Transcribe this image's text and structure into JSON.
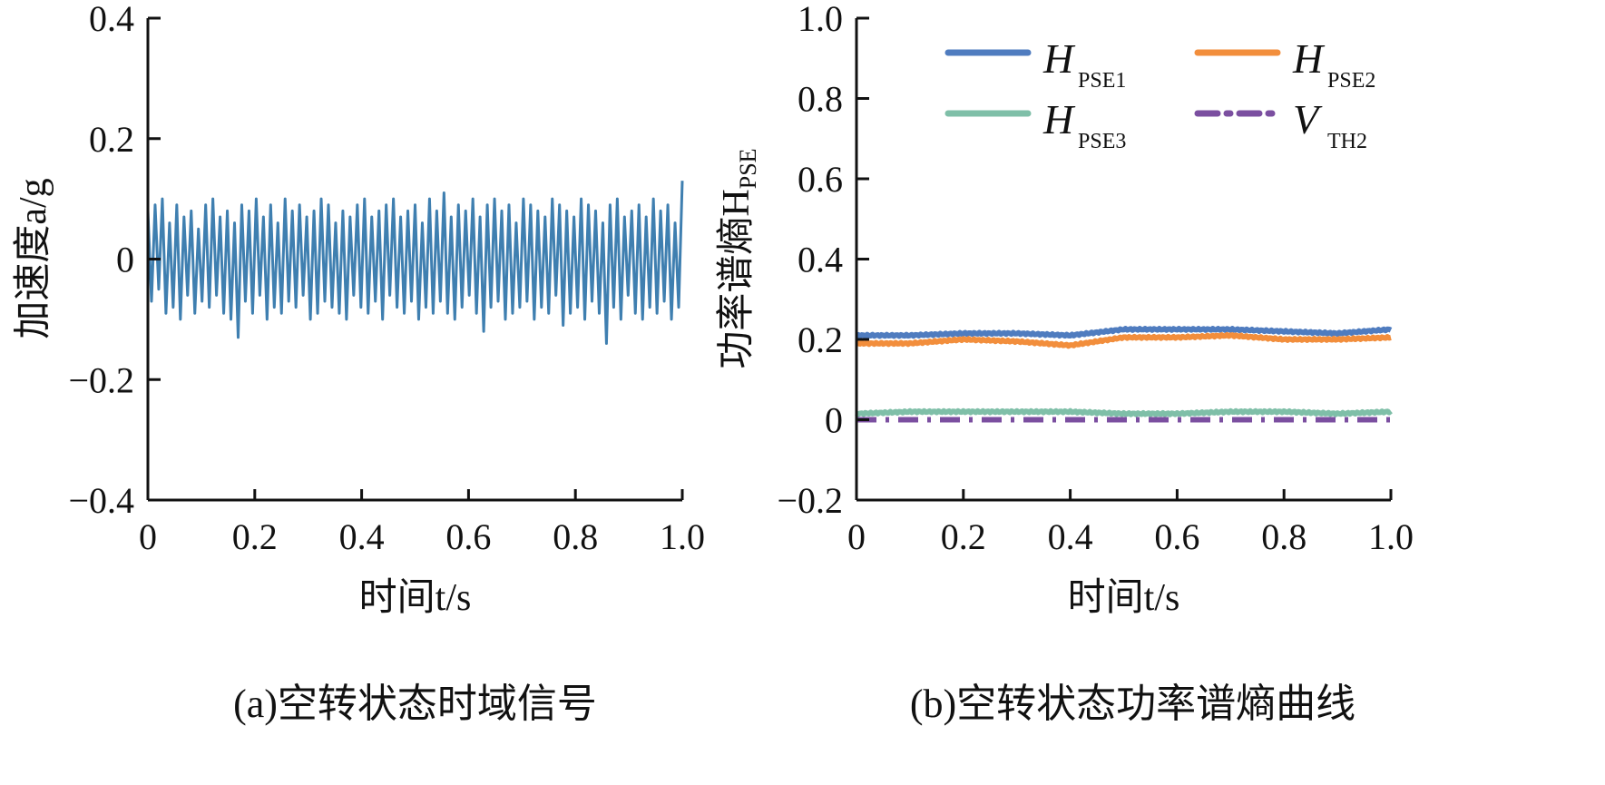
{
  "chart_data": [
    {
      "type": "line",
      "caption": "(a)空转状态时域信号",
      "xlabel": "时间t/s",
      "ylabel": "加速度a/g",
      "xlim": [
        0,
        1.0
      ],
      "ylim": [
        -0.4,
        0.4
      ],
      "xticks": [
        "0",
        "0.2",
        "0.4",
        "0.6",
        "0.8",
        "1.0"
      ],
      "yticks": [
        "−0.4",
        "−0.2",
        "0",
        "0.2",
        "0.4"
      ],
      "series": [
        {
          "name": "acceleration",
          "color": "#3f7fb0",
          "values": [
            0.08,
            -0.07,
            0.09,
            -0.05,
            0.1,
            -0.09,
            0.06,
            -0.08,
            0.09,
            -0.1,
            0.07,
            -0.06,
            0.08,
            -0.09,
            0.05,
            -0.07,
            0.09,
            -0.08,
            0.1,
            -0.06,
            0.07,
            -0.09,
            0.08,
            -0.1,
            0.06,
            -0.13,
            0.09,
            -0.07,
            0.08,
            -0.09,
            0.1,
            -0.06,
            0.07,
            -0.1,
            0.09,
            -0.08,
            0.06,
            -0.09,
            0.1,
            -0.07,
            0.08,
            -0.08,
            0.09,
            -0.06,
            0.07,
            -0.1,
            0.08,
            -0.09,
            0.1,
            -0.07,
            0.09,
            -0.08,
            0.06,
            -0.09,
            0.08,
            -0.1,
            0.07,
            -0.06,
            0.09,
            -0.08,
            0.1,
            -0.09,
            0.07,
            -0.07,
            0.08,
            -0.1,
            0.09,
            -0.06,
            0.1,
            -0.08,
            0.07,
            -0.09,
            0.08,
            -0.07,
            0.09,
            -0.1,
            0.06,
            -0.08,
            0.1,
            -0.09,
            0.08,
            -0.07,
            0.11,
            -0.09,
            0.07,
            -0.1,
            0.09,
            -0.08,
            0.08,
            -0.06,
            0.1,
            -0.09,
            0.07,
            -0.12,
            0.09,
            -0.08,
            0.1,
            -0.07,
            0.08,
            -0.1,
            0.09,
            -0.09,
            0.06,
            -0.08,
            0.1,
            -0.07,
            0.09,
            -0.1,
            0.08,
            -0.08,
            0.07,
            -0.09,
            0.1,
            -0.06,
            0.09,
            -0.11,
            0.08,
            -0.09,
            0.07,
            -0.08,
            0.1,
            -0.1,
            0.09,
            -0.07,
            0.08,
            -0.09,
            0.06,
            -0.14,
            0.09,
            -0.08,
            0.1,
            -0.1,
            0.07,
            -0.06,
            0.08,
            -0.09,
            0.09,
            -0.1,
            0.07,
            -0.08,
            0.1,
            -0.09,
            0.08,
            -0.07,
            0.09,
            -0.1,
            0.06,
            -0.08,
            0.13
          ]
        }
      ]
    },
    {
      "type": "line",
      "caption": "(b)空转状态功率谱熵曲线",
      "xlabel": "时间t/s",
      "ylabel": "功率谱熵H",
      "ylabel_sub": "PSE",
      "xlim": [
        0,
        1.0
      ],
      "ylim": [
        -0.2,
        1.0
      ],
      "xticks": [
        "0",
        "0.2",
        "0.4",
        "0.6",
        "0.8",
        "1.0"
      ],
      "yticks": [
        "−0.2",
        "0",
        "0.2",
        "0.4",
        "0.6",
        "0.8",
        "1.0"
      ],
      "legend_position": "top-right",
      "x": [
        0,
        0.1,
        0.2,
        0.3,
        0.4,
        0.5,
        0.6,
        0.7,
        0.8,
        0.9,
        1.0
      ],
      "series": [
        {
          "name": "H",
          "sub": "PSE1",
          "color": "#4f7cbf",
          "dash": "solid",
          "values": [
            0.21,
            0.21,
            0.215,
            0.215,
            0.21,
            0.225,
            0.225,
            0.225,
            0.22,
            0.215,
            0.225
          ]
        },
        {
          "name": "H",
          "sub": "PSE2",
          "color": "#f28e3c",
          "dash": "solid",
          "values": [
            0.19,
            0.19,
            0.2,
            0.195,
            0.185,
            0.205,
            0.205,
            0.21,
            0.2,
            0.2,
            0.205
          ]
        },
        {
          "name": "H",
          "sub": "PSE3",
          "color": "#7fbfa8",
          "dash": "solid",
          "values": [
            0.015,
            0.02,
            0.02,
            0.02,
            0.02,
            0.015,
            0.015,
            0.02,
            0.02,
            0.015,
            0.02
          ]
        },
        {
          "name": "V",
          "sub": "TH2",
          "color": "#7b4fa0",
          "dash": "dashdot",
          "values": [
            0,
            0,
            0,
            0,
            0,
            0,
            0,
            0,
            0,
            0,
            0
          ]
        }
      ]
    }
  ]
}
